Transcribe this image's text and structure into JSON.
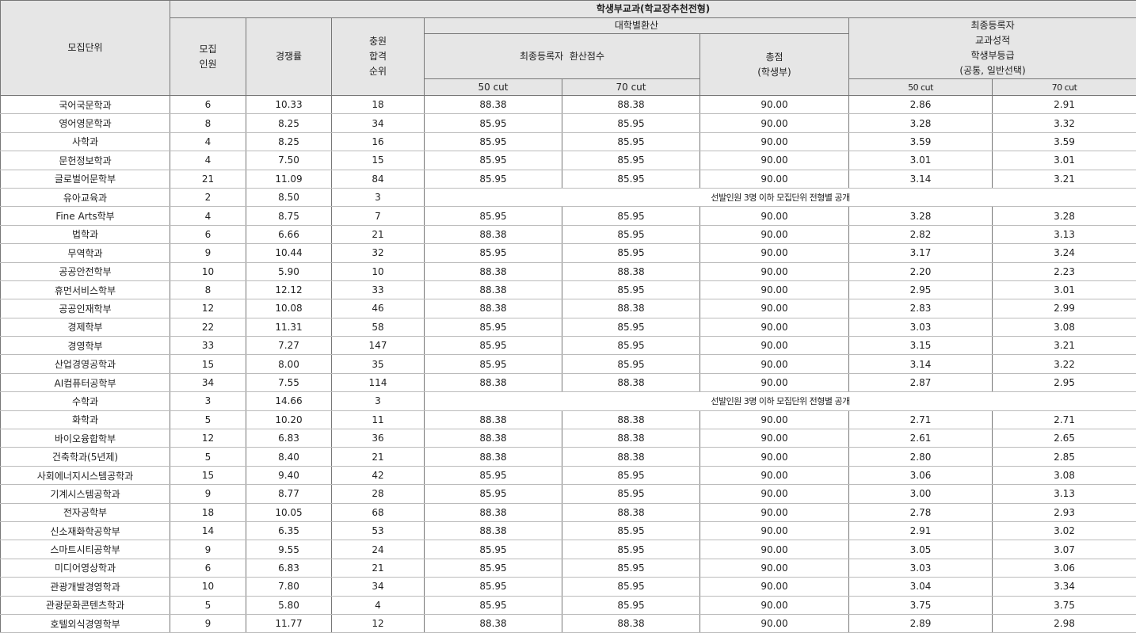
{
  "header": {
    "unit": "모집단위",
    "group": "학생부교과(학교장추천전형)",
    "quota": [
      "모집",
      "인원"
    ],
    "competition": "경쟁률",
    "waitlist": [
      "충원",
      "합격",
      "순위"
    ],
    "univ_conv": "대학별환산",
    "final_conv": "최종등록자  환산점수",
    "total": [
      "총점",
      "(학생부)"
    ],
    "final_grade": [
      "최종등록자",
      "교과성적",
      "학생부등급",
      "(공통, 일반선택)"
    ],
    "cut50": "50 cut",
    "cut70": "70 cut",
    "g_cut50": "50 cut",
    "g_cut70": "70 cut"
  },
  "notice": "선발인원 3명 이하 모집단위 전형별 공개",
  "rows": [
    {
      "unit": "국어국문학과",
      "quota": "6",
      "rate": "10.33",
      "rank": "18",
      "c50": "88.38",
      "c70": "88.38",
      "total": "90.00",
      "g50": "2.86",
      "g70": "2.91"
    },
    {
      "unit": "영어영문학과",
      "quota": "8",
      "rate": "8.25",
      "rank": "34",
      "c50": "85.95",
      "c70": "85.95",
      "total": "90.00",
      "g50": "3.28",
      "g70": "3.32"
    },
    {
      "unit": "사학과",
      "quota": "4",
      "rate": "8.25",
      "rank": "16",
      "c50": "85.95",
      "c70": "85.95",
      "total": "90.00",
      "g50": "3.59",
      "g70": "3.59"
    },
    {
      "unit": "문헌정보학과",
      "quota": "4",
      "rate": "7.50",
      "rank": "15",
      "c50": "85.95",
      "c70": "85.95",
      "total": "90.00",
      "g50": "3.01",
      "g70": "3.01"
    },
    {
      "unit": "글로벌어문학부",
      "quota": "21",
      "rate": "11.09",
      "rank": "84",
      "c50": "85.95",
      "c70": "85.95",
      "total": "90.00",
      "g50": "3.14",
      "g70": "3.21"
    },
    {
      "unit": "유아교육과",
      "quota": "2",
      "rate": "8.50",
      "rank": "3",
      "notice": true
    },
    {
      "unit": "Fine Arts학부",
      "quota": "4",
      "rate": "8.75",
      "rank": "7",
      "c50": "85.95",
      "c70": "85.95",
      "total": "90.00",
      "g50": "3.28",
      "g70": "3.28"
    },
    {
      "unit": "법학과",
      "quota": "6",
      "rate": "6.66",
      "rank": "21",
      "c50": "88.38",
      "c70": "85.95",
      "total": "90.00",
      "g50": "2.82",
      "g70": "3.13"
    },
    {
      "unit": "무역학과",
      "quota": "9",
      "rate": "10.44",
      "rank": "32",
      "c50": "85.95",
      "c70": "85.95",
      "total": "90.00",
      "g50": "3.17",
      "g70": "3.24"
    },
    {
      "unit": "공공안전학부",
      "quota": "10",
      "rate": "5.90",
      "rank": "10",
      "c50": "88.38",
      "c70": "88.38",
      "total": "90.00",
      "g50": "2.20",
      "g70": "2.23"
    },
    {
      "unit": "휴먼서비스학부",
      "quota": "8",
      "rate": "12.12",
      "rank": "33",
      "c50": "88.38",
      "c70": "85.95",
      "total": "90.00",
      "g50": "2.95",
      "g70": "3.01"
    },
    {
      "unit": "공공인재학부",
      "quota": "12",
      "rate": "10.08",
      "rank": "46",
      "c50": "88.38",
      "c70": "88.38",
      "total": "90.00",
      "g50": "2.83",
      "g70": "2.99"
    },
    {
      "unit": "경제학부",
      "quota": "22",
      "rate": "11.31",
      "rank": "58",
      "c50": "85.95",
      "c70": "85.95",
      "total": "90.00",
      "g50": "3.03",
      "g70": "3.08"
    },
    {
      "unit": "경영학부",
      "quota": "33",
      "rate": "7.27",
      "rank": "147",
      "c50": "85.95",
      "c70": "85.95",
      "total": "90.00",
      "g50": "3.15",
      "g70": "3.21"
    },
    {
      "unit": "산업경영공학과",
      "quota": "15",
      "rate": "8.00",
      "rank": "35",
      "c50": "85.95",
      "c70": "85.95",
      "total": "90.00",
      "g50": "3.14",
      "g70": "3.22"
    },
    {
      "unit": "AI컴퓨터공학부",
      "quota": "34",
      "rate": "7.55",
      "rank": "114",
      "c50": "88.38",
      "c70": "88.38",
      "total": "90.00",
      "g50": "2.87",
      "g70": "2.95"
    },
    {
      "unit": "수학과",
      "quota": "3",
      "rate": "14.66",
      "rank": "3",
      "notice": true
    },
    {
      "unit": "화학과",
      "quota": "5",
      "rate": "10.20",
      "rank": "11",
      "c50": "88.38",
      "c70": "88.38",
      "total": "90.00",
      "g50": "2.71",
      "g70": "2.71"
    },
    {
      "unit": "바이오융합학부",
      "quota": "12",
      "rate": "6.83",
      "rank": "36",
      "c50": "88.38",
      "c70": "88.38",
      "total": "90.00",
      "g50": "2.61",
      "g70": "2.65"
    },
    {
      "unit": "건축학과(5년제)",
      "quota": "5",
      "rate": "8.40",
      "rank": "21",
      "c50": "88.38",
      "c70": "88.38",
      "total": "90.00",
      "g50": "2.80",
      "g70": "2.85"
    },
    {
      "unit": "사회에너지시스템공학과",
      "quota": "15",
      "rate": "9.40",
      "rank": "42",
      "c50": "85.95",
      "c70": "85.95",
      "total": "90.00",
      "g50": "3.06",
      "g70": "3.08"
    },
    {
      "unit": "기계시스템공학과",
      "quota": "9",
      "rate": "8.77",
      "rank": "28",
      "c50": "85.95",
      "c70": "85.95",
      "total": "90.00",
      "g50": "3.00",
      "g70": "3.13"
    },
    {
      "unit": "전자공학부",
      "quota": "18",
      "rate": "10.05",
      "rank": "68",
      "c50": "88.38",
      "c70": "88.38",
      "total": "90.00",
      "g50": "2.78",
      "g70": "2.93"
    },
    {
      "unit": "신소재화학공학부",
      "quota": "14",
      "rate": "6.35",
      "rank": "53",
      "c50": "88.38",
      "c70": "85.95",
      "total": "90.00",
      "g50": "2.91",
      "g70": "3.02"
    },
    {
      "unit": "스마트시티공학부",
      "quota": "9",
      "rate": "9.55",
      "rank": "24",
      "c50": "85.95",
      "c70": "85.95",
      "total": "90.00",
      "g50": "3.05",
      "g70": "3.07"
    },
    {
      "unit": "미디어영상학과",
      "quota": "6",
      "rate": "6.83",
      "rank": "21",
      "c50": "85.95",
      "c70": "85.95",
      "total": "90.00",
      "g50": "3.03",
      "g70": "3.06"
    },
    {
      "unit": "관광개발경영학과",
      "quota": "10",
      "rate": "7.80",
      "rank": "34",
      "c50": "85.95",
      "c70": "85.95",
      "total": "90.00",
      "g50": "3.04",
      "g70": "3.34"
    },
    {
      "unit": "관광문화콘텐츠학과",
      "quota": "5",
      "rate": "5.80",
      "rank": "4",
      "c50": "85.95",
      "c70": "85.95",
      "total": "90.00",
      "g50": "3.75",
      "g70": "3.75"
    },
    {
      "unit": "호텔외식경영학부",
      "quota": "9",
      "rate": "11.77",
      "rank": "12",
      "c50": "88.38",
      "c70": "88.38",
      "total": "90.00",
      "g50": "2.89",
      "g70": "2.98"
    }
  ]
}
